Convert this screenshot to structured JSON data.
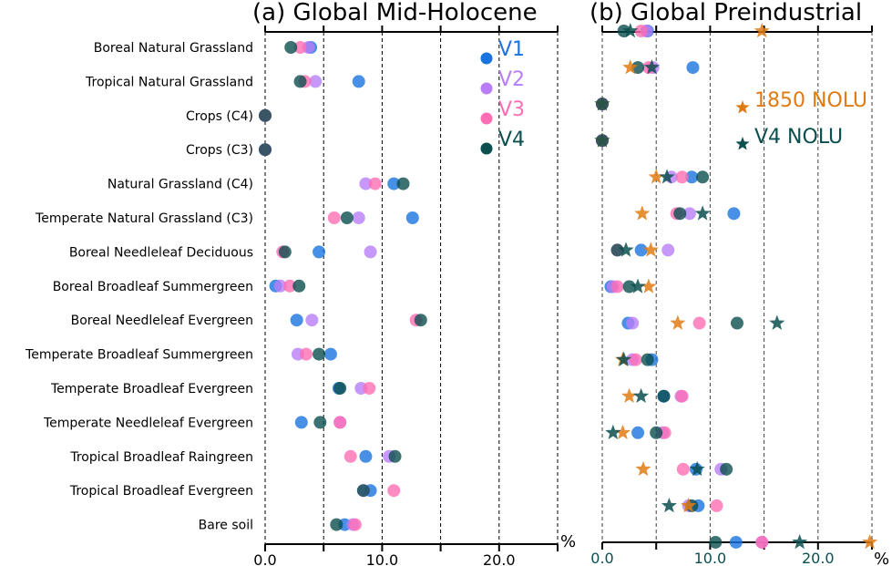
{
  "chart_data": [
    {
      "type": "scatter",
      "panel": "a",
      "title": "(a) Global Mid-Holocene",
      "xlabel": "%",
      "xlim": [
        0,
        25
      ],
      "xticks": [
        0,
        10,
        20
      ],
      "xtick_labels": [
        "0.0",
        "10.0",
        "20.0"
      ],
      "grid": "vertical dashed every 5",
      "categories": [
        "Boreal Natural Grassland",
        "Tropical Natural Grassland",
        "Crops (C4)",
        "Crops (C3)",
        "Natural Grassland (C4)",
        "Temperate Natural Grassland (C3)",
        "Boreal Needleleaf Deciduous",
        "Boreal Broadleaf Summergreen",
        "Boreal Needleleaf Evergreen",
        "Temperate Broadleaf Summergreen",
        "Temperate Broadleaf Evergreen",
        "Temperate Needleleaf Evergreen",
        "Tropical Broadleaf Raingreen",
        "Tropical Broadleaf Evergreen",
        "Bare soil"
      ],
      "series": [
        {
          "name": "V1",
          "marker": "circle",
          "color": "#1a74e0",
          "values": [
            3.9,
            8.0,
            0.0,
            0.0,
            11.0,
            12.6,
            4.6,
            0.9,
            2.7,
            5.6,
            6.3,
            3.1,
            8.6,
            9.0,
            6.8
          ]
        },
        {
          "name": "V2",
          "marker": "circle",
          "color": "#b77ef7",
          "values": [
            3.7,
            4.3,
            0.0,
            0.0,
            8.6,
            8.0,
            9.0,
            1.3,
            4.0,
            2.8,
            8.2,
            6.4,
            10.6,
            8.4,
            7.5
          ]
        },
        {
          "name": "V3",
          "marker": "circle",
          "color": "#ff6eb4",
          "values": [
            3.0,
            3.4,
            0.0,
            0.0,
            9.4,
            5.9,
            1.5,
            2.1,
            12.9,
            3.5,
            8.9,
            6.4,
            7.3,
            11.0,
            7.7
          ]
        },
        {
          "name": "V4",
          "marker": "circle",
          "color": "#0b4f4f",
          "values": [
            2.2,
            3.0,
            0.0,
            0.0,
            11.8,
            7.0,
            1.7,
            2.9,
            13.3,
            4.6,
            6.4,
            4.7,
            11.1,
            8.4,
            6.1
          ]
        }
      ],
      "legend": {
        "placement": "top-right",
        "entries": [
          "V1",
          "V2",
          "V3",
          "V4"
        ]
      }
    },
    {
      "type": "scatter",
      "panel": "b",
      "title": "(b) Global Preindustrial",
      "xlabel": "%",
      "xlim": [
        0,
        25
      ],
      "xticks": [
        0,
        10,
        20
      ],
      "xtick_labels": [
        "0.0",
        "10.0",
        "20.0"
      ],
      "grid": "vertical dashed every 5",
      "categories": [
        "Boreal Natural Grassland",
        "Tropical Natural Grassland",
        "Crops (C4)",
        "Crops (C3)",
        "Natural Grassland (C4)",
        "Temperate Natural Grassland (C3)",
        "Boreal Needleleaf Deciduous",
        "Boreal Broadleaf Summergreen",
        "Boreal Needleleaf Evergreen",
        "Temperate Broadleaf Summergreen",
        "Temperate Broadleaf Evergreen",
        "Temperate Needleleaf Evergreen",
        "Tropical Broadleaf Raingreen",
        "Tropical Broadleaf Evergreen",
        "Bare soil"
      ],
      "series": [
        {
          "name": "V1",
          "marker": "circle",
          "color": "#1a74e0",
          "values": [
            4.2,
            8.4,
            0.0,
            0.0,
            8.3,
            12.2,
            3.6,
            0.8,
            2.4,
            4.6,
            5.7,
            3.3,
            8.7,
            8.9,
            12.4
          ]
        },
        {
          "name": "V2",
          "marker": "circle",
          "color": "#b77ef7",
          "values": [
            4.1,
            4.7,
            0.0,
            0.0,
            6.4,
            8.1,
            6.1,
            1.0,
            2.8,
            2.8,
            7.3,
            5.6,
            11.0,
            8.0,
            14.8
          ]
        },
        {
          "name": "V3",
          "marker": "circle",
          "color": "#ff6eb4",
          "values": [
            3.6,
            4.3,
            0.0,
            0.0,
            7.4,
            6.9,
            1.4,
            1.4,
            9.0,
            3.1,
            7.4,
            5.8,
            7.5,
            10.6,
            14.8
          ]
        },
        {
          "name": "V4",
          "marker": "circle",
          "color": "#0b4f4f",
          "values": [
            2.0,
            3.3,
            0.0,
            0.0,
            9.3,
            7.2,
            1.4,
            2.5,
            12.5,
            4.2,
            5.7,
            5.0,
            11.5,
            8.3,
            10.5
          ]
        },
        {
          "name": "1850 NOLU",
          "marker": "star",
          "color": "#e07b14",
          "values": [
            14.8,
            2.6,
            0.0,
            0.0,
            5.0,
            3.7,
            4.5,
            4.3,
            7.0,
            1.9,
            2.5,
            1.9,
            3.8,
            8.0,
            24.8
          ]
        },
        {
          "name": "V4 NOLU",
          "marker": "star",
          "color": "#0b4f4f",
          "values": [
            2.6,
            4.6,
            0.0,
            0.0,
            6.0,
            9.3,
            2.2,
            3.3,
            16.2,
            2.0,
            3.6,
            1.0,
            8.8,
            6.2,
            18.3
          ]
        }
      ],
      "legend": {
        "placement": "right",
        "entries": [
          "1850 NOLU",
          "V4 NOLU"
        ]
      }
    }
  ]
}
